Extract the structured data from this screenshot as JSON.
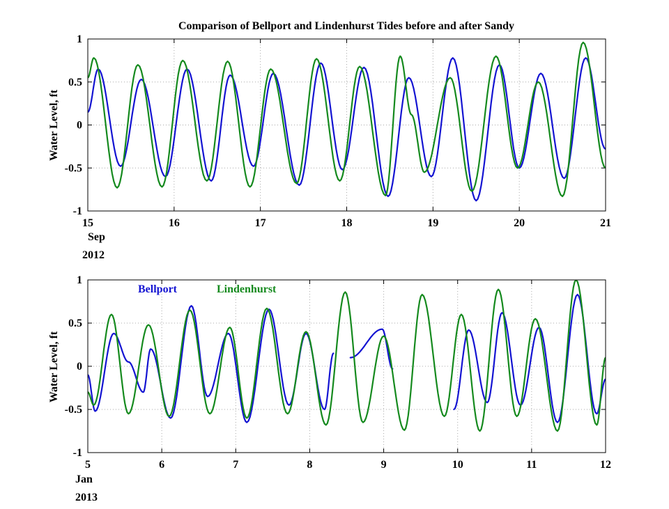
{
  "figure_title": "Comparison of Bellport and Lindenhurst Tides before and after Sandy",
  "colors": {
    "bellport": "#1414d2",
    "lindenhurst": "#158a1e"
  },
  "chart_data": [
    {
      "type": "line",
      "title": "Comparison of Bellport and Lindenhurst Tides before and after Sandy",
      "ylabel": "Water Level, ft",
      "xlim": [
        15,
        21
      ],
      "ylim": [
        -1,
        1
      ],
      "x_ticks": [
        "15",
        "16",
        "17",
        "18",
        "19",
        "20",
        "21"
      ],
      "y_ticks": [
        "1",
        "0.5",
        "0",
        "-0.5",
        "-1"
      ],
      "x_sublabel": [
        "Sep",
        "2012"
      ],
      "grid": true,
      "series": [
        {
          "key": "bellport",
          "x": [
            15.0,
            15.12,
            15.38,
            15.62,
            15.9,
            16.15,
            16.43,
            16.65,
            16.92,
            17.15,
            17.45,
            17.7,
            17.95,
            18.2,
            18.48,
            18.72,
            18.98,
            19.23,
            19.5,
            19.77,
            20.0,
            20.25,
            20.52,
            20.77,
            21.0
          ],
          "y": [
            0.15,
            0.65,
            -0.48,
            0.53,
            -0.6,
            0.65,
            -0.65,
            0.58,
            -0.48,
            0.6,
            -0.7,
            0.72,
            -0.52,
            0.67,
            -0.83,
            0.55,
            -0.6,
            0.78,
            -0.88,
            0.7,
            -0.5,
            0.6,
            -0.62,
            0.78,
            -0.28
          ]
        },
        {
          "key": "lindenhurst",
          "x": [
            15.0,
            15.07,
            15.34,
            15.58,
            15.86,
            16.1,
            16.38,
            16.62,
            16.88,
            17.12,
            17.42,
            17.65,
            17.92,
            18.15,
            18.45,
            18.62,
            18.75,
            18.9,
            19.2,
            19.45,
            19.73,
            19.98,
            20.22,
            20.5,
            20.74,
            21.0
          ],
          "y": [
            0.55,
            0.78,
            -0.73,
            0.7,
            -0.72,
            0.75,
            -0.65,
            0.74,
            -0.72,
            0.65,
            -0.68,
            0.77,
            -0.65,
            0.68,
            -0.82,
            0.8,
            0.12,
            -0.55,
            0.55,
            -0.77,
            0.8,
            -0.5,
            0.5,
            -0.83,
            0.96,
            -0.5
          ]
        }
      ]
    },
    {
      "type": "line",
      "ylabel": "Water Level, ft",
      "xlim": [
        5,
        12
      ],
      "ylim": [
        -1,
        1
      ],
      "x_ticks": [
        "5",
        "6",
        "7",
        "8",
        "9",
        "10",
        "11",
        "12"
      ],
      "y_ticks": [
        "1",
        "0.5",
        "0",
        "-0.5",
        "-1"
      ],
      "x_sublabel": [
        "Jan",
        "2013"
      ],
      "grid": true,
      "legend": [
        "Bellport",
        "Lindenhurst"
      ],
      "series": [
        {
          "key": "bellport",
          "x": [
            5.0,
            5.1,
            5.35,
            5.55,
            5.75,
            5.85,
            6.12,
            6.4,
            6.62,
            6.9,
            7.15,
            7.45,
            7.72,
            7.95,
            8.2,
            8.32,
            null,
            8.55,
            8.98,
            9.12,
            null,
            9.95,
            10.15,
            10.4,
            10.6,
            10.85,
            11.1,
            11.35,
            11.62,
            11.88,
            12.0
          ],
          "y": [
            -0.1,
            -0.52,
            0.38,
            0.05,
            -0.3,
            0.2,
            -0.6,
            0.7,
            -0.35,
            0.38,
            -0.65,
            0.66,
            -0.45,
            0.38,
            -0.5,
            0.15,
            null,
            0.1,
            0.43,
            -0.03,
            null,
            -0.5,
            0.42,
            -0.42,
            0.62,
            -0.45,
            0.45,
            -0.65,
            0.83,
            -0.55,
            -0.15
          ]
        },
        {
          "key": "lindenhurst",
          "x": [
            5.0,
            5.08,
            5.32,
            5.55,
            5.82,
            6.1,
            6.38,
            6.65,
            6.92,
            7.15,
            7.42,
            7.7,
            7.95,
            8.22,
            8.48,
            8.72,
            9.0,
            9.28,
            9.52,
            9.82,
            10.05,
            10.3,
            10.55,
            10.8,
            11.05,
            11.35,
            11.6,
            11.88,
            12.0
          ],
          "y": [
            -0.3,
            -0.45,
            0.6,
            -0.55,
            0.48,
            -0.58,
            0.65,
            -0.55,
            0.45,
            -0.6,
            0.67,
            -0.55,
            0.4,
            -0.68,
            0.86,
            -0.65,
            0.35,
            -0.74,
            0.83,
            -0.58,
            0.6,
            -0.75,
            0.89,
            -0.58,
            0.55,
            -0.75,
            1.0,
            -0.68,
            0.1
          ]
        }
      ]
    }
  ]
}
